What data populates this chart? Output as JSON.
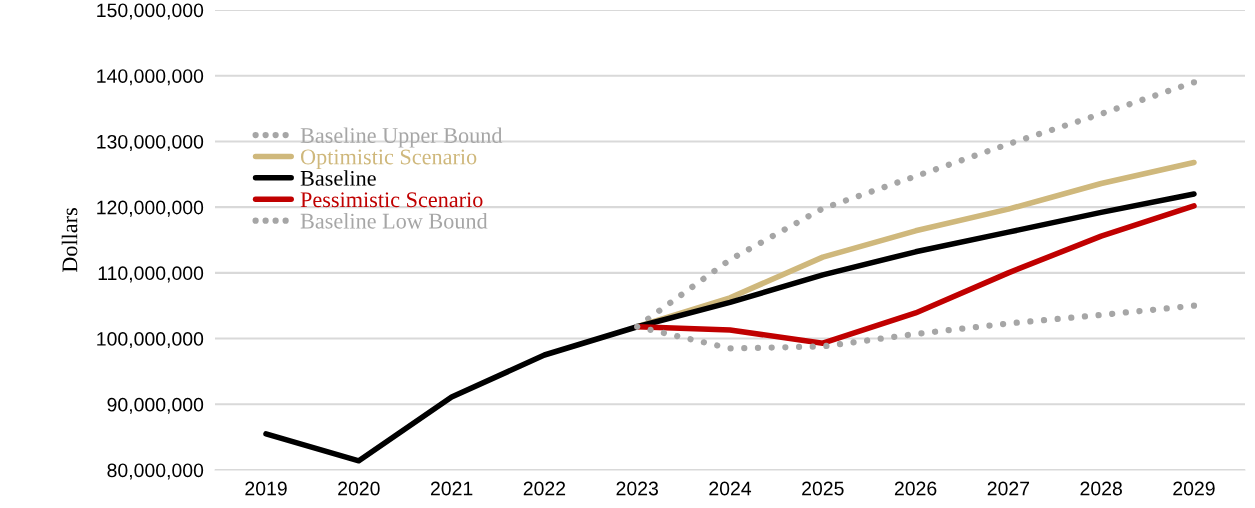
{
  "chart_data": {
    "type": "line",
    "ylabel": "Dollars",
    "categories": [
      "2019",
      "2020",
      "2021",
      "2022",
      "2023",
      "2024",
      "2025",
      "2026",
      "2027",
      "2028",
      "2029"
    ],
    "series": [
      {
        "name": "Baseline Upper Bound",
        "color": "#a6a6a6",
        "line_style": "dotted",
        "values": [
          null,
          null,
          null,
          null,
          101800000,
          112000000,
          119800000,
          124700000,
          129600000,
          134200000,
          139000000
        ]
      },
      {
        "name": "Optimistic Scenario",
        "color": "#cfb87c",
        "values": [
          null,
          null,
          null,
          null,
          101800000,
          106200000,
          112400000,
          116400000,
          119700000,
          123600000,
          126800000
        ]
      },
      {
        "name": "Baseline",
        "color": "#000000",
        "values": [
          85500000,
          81400000,
          91100000,
          97500000,
          101800000,
          105500000,
          109700000,
          113200000,
          116200000,
          119200000,
          122000000
        ]
      },
      {
        "name": "Pessimistic Scenario",
        "color": "#c00000",
        "values": [
          null,
          null,
          null,
          null,
          101800000,
          101300000,
          99300000,
          103900000,
          110000000,
          115600000,
          120200000
        ]
      },
      {
        "name": "Baseline Low Bound",
        "color": "#a6a6a6",
        "line_style": "dotted",
        "values": [
          null,
          null,
          null,
          null,
          101800000,
          98500000,
          98800000,
          100700000,
          102300000,
          103600000,
          105000000
        ]
      }
    ],
    "ylim": [
      80000000,
      150000000
    ],
    "yticks": [
      {
        "value": 80000000,
        "label": "80,000,000"
      },
      {
        "value": 90000000,
        "label": "90,000,000"
      },
      {
        "value": 100000000,
        "label": "100,000,000"
      },
      {
        "value": 110000000,
        "label": "110,000,000"
      },
      {
        "value": 120000000,
        "label": "120,000,000"
      },
      {
        "value": 130000000,
        "label": "130,000,000"
      },
      {
        "value": 140000000,
        "label": "140,000,000"
      },
      {
        "value": 150000000,
        "label": "150,000,000"
      }
    ],
    "grid": "y",
    "legend": "left",
    "marker": "none",
    "line_style": "solid"
  }
}
